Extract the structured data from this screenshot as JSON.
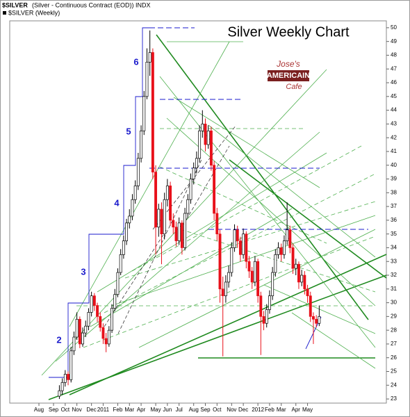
{
  "header": {
    "symbol": "$SILVER",
    "description": "(Silver - Continuous Contract (EOD)) INDX",
    "legend": "$SILVER (Weekly)"
  },
  "logo": {
    "line1": "Jose's",
    "line2": "AMERICAIN",
    "line3": "Cafe"
  },
  "chart_data": {
    "type": "candlestick",
    "title": "Silver Weekly Chart",
    "wave_labels": [
      "2",
      "3",
      "4",
      "5",
      "6"
    ],
    "up_color": "#ffffff",
    "down_color": "#e8101a",
    "xlim": [
      -4,
      125
    ],
    "xticks": [
      {
        "value": 6,
        "label": "Aug"
      },
      {
        "value": 11,
        "label": "Sep"
      },
      {
        "value": 15,
        "label": "Oct"
      },
      {
        "value": 19,
        "label": "Nov"
      },
      {
        "value": 24,
        "label": "Dec"
      },
      {
        "value": 28,
        "label": "2011"
      },
      {
        "value": 33,
        "label": "Feb"
      },
      {
        "value": 37,
        "label": "Mar"
      },
      {
        "value": 41,
        "label": "Apr"
      },
      {
        "value": 46,
        "label": "May"
      },
      {
        "value": 50,
        "label": "Jun"
      },
      {
        "value": 54,
        "label": "Jul"
      },
      {
        "value": 59,
        "label": "Aug"
      },
      {
        "value": 63,
        "label": "Sep"
      },
      {
        "value": 67,
        "label": "Oct"
      },
      {
        "value": 72,
        "label": "Nov"
      },
      {
        "value": 76,
        "label": "Dec"
      },
      {
        "value": 81,
        "label": "2012"
      },
      {
        "value": 85,
        "label": "Feb"
      },
      {
        "value": 89,
        "label": "Mar"
      },
      {
        "value": 94,
        "label": "Apr"
      },
      {
        "value": 98,
        "label": "May"
      }
    ],
    "ylim": [
      22.7,
      50.5
    ],
    "yticks": [
      23,
      24,
      25,
      26,
      27,
      28,
      29,
      30,
      31,
      32,
      33,
      34,
      35,
      36,
      37,
      38,
      39,
      40,
      41,
      42,
      43,
      44,
      45,
      46,
      47,
      48,
      49,
      50
    ],
    "x": [
      13,
      14,
      15,
      16,
      17,
      18,
      19,
      20,
      21,
      22,
      23,
      24,
      25,
      26,
      27,
      28,
      29,
      30,
      31,
      32,
      33,
      34,
      35,
      36,
      37,
      38,
      39,
      40,
      41,
      42,
      43,
      44,
      45,
      46,
      47,
      48,
      49,
      50,
      51,
      52,
      53,
      54,
      55,
      56,
      57,
      58,
      59,
      60,
      61,
      62,
      63,
      64,
      65,
      66,
      67,
      68,
      69,
      70,
      71,
      72,
      73,
      74,
      75,
      76,
      77,
      78,
      79,
      80,
      81,
      82,
      83,
      84,
      85,
      86,
      87,
      88,
      89,
      90,
      91,
      92,
      93,
      94,
      95,
      96,
      97,
      98,
      99,
      100,
      101,
      102
    ],
    "open": [
      23.2,
      23.6,
      24.2,
      24.8,
      24.4,
      26.5,
      27.5,
      28.8,
      27.0,
      27.8,
      28.3,
      29.3,
      30.5,
      29.8,
      29.0,
      28.2,
      27.4,
      27.0,
      28.0,
      29.6,
      30.6,
      32.2,
      33.5,
      34.5,
      35.8,
      36.3,
      37.5,
      38.5,
      40.5,
      42.5,
      45.0,
      47.5,
      48.2,
      39.5,
      35.5,
      36.8,
      35.0,
      37.5,
      38.5,
      36.0,
      35.5,
      34.5,
      35.8,
      34.0,
      36.5,
      37.5,
      39.0,
      39.8,
      40.5,
      42.5,
      43.0,
      41.5,
      42.5,
      40.0,
      36.5,
      35.0,
      31.0,
      30.5,
      31.5,
      32.2,
      34.0,
      35.3,
      34.5,
      33.5,
      35.0,
      33.0,
      32.3,
      31.5,
      33.0,
      30.5,
      29.0,
      28.5,
      29.5,
      30.5,
      32.2,
      33.5,
      34.0,
      33.5,
      34.5,
      35.3,
      34.0,
      32.5,
      32.8,
      31.5,
      32.0,
      31.0,
      30.5,
      29.0,
      28.8,
      28.5
    ],
    "high": [
      24.0,
      24.5,
      25.1,
      25.0,
      26.8,
      27.9,
      29.3,
      29.0,
      28.2,
      28.7,
      29.6,
      30.8,
      30.7,
      30.0,
      29.3,
      28.5,
      27.8,
      28.3,
      29.9,
      31.0,
      32.5,
      33.9,
      34.9,
      36.1,
      36.8,
      37.9,
      38.9,
      40.9,
      42.9,
      45.4,
      48.5,
      49.8,
      48.5,
      40.0,
      37.2,
      37.3,
      38.0,
      39.0,
      38.8,
      36.5,
      35.9,
      36.2,
      36.0,
      36.9,
      37.9,
      39.4,
      40.2,
      41.0,
      42.9,
      44.0,
      43.4,
      42.9,
      42.8,
      40.3,
      36.9,
      35.3,
      31.9,
      32.0,
      32.7,
      34.4,
      35.7,
      35.6,
      34.8,
      35.4,
      35.2,
      33.4,
      32.6,
      33.4,
      33.2,
      30.8,
      29.4,
      29.9,
      30.9,
      32.6,
      33.9,
      34.4,
      34.3,
      34.9,
      37.3,
      35.6,
      34.3,
      33.2,
      33.0,
      32.4,
      32.3,
      31.3,
      30.8,
      29.3,
      29.1,
      29.8
    ],
    "low": [
      23.0,
      23.3,
      23.9,
      24.0,
      24.2,
      26.2,
      27.3,
      26.7,
      26.8,
      27.5,
      28.0,
      29.0,
      29.4,
      28.6,
      27.9,
      27.0,
      26.4,
      26.8,
      27.8,
      29.4,
      30.4,
      32.0,
      33.2,
      34.2,
      35.4,
      36.0,
      37.2,
      38.2,
      40.2,
      42.2,
      44.8,
      46.5,
      39.0,
      33.5,
      34.8,
      32.8,
      34.6,
      37.0,
      35.6,
      35.0,
      34.1,
      34.2,
      33.5,
      33.8,
      36.2,
      37.2,
      38.6,
      39.4,
      40.2,
      42.0,
      41.0,
      41.2,
      39.6,
      36.0,
      34.5,
      30.0,
      26.1,
      30.0,
      31.1,
      31.9,
      33.7,
      34.0,
      33.0,
      33.2,
      32.5,
      31.8,
      31.0,
      31.2,
      30.0,
      26.2,
      28.0,
      28.2,
      29.2,
      30.2,
      31.9,
      33.2,
      33.0,
      33.2,
      34.2,
      33.6,
      32.1,
      32.0,
      31.0,
      31.2,
      30.6,
      30.0,
      28.6,
      27.0,
      28.2,
      28.3
    ],
    "close": [
      23.6,
      24.2,
      24.8,
      24.4,
      26.5,
      27.5,
      28.8,
      27.0,
      27.8,
      28.3,
      29.3,
      30.5,
      29.8,
      29.0,
      28.2,
      27.4,
      27.0,
      28.0,
      29.6,
      30.6,
      32.2,
      33.5,
      34.5,
      35.8,
      36.3,
      37.5,
      38.5,
      40.5,
      42.5,
      45.0,
      47.5,
      48.2,
      39.5,
      35.5,
      36.8,
      35.0,
      37.5,
      38.5,
      36.0,
      35.5,
      34.5,
      35.8,
      34.0,
      36.5,
      37.5,
      39.0,
      39.8,
      40.5,
      42.5,
      43.0,
      41.5,
      42.5,
      40.0,
      36.5,
      35.0,
      31.0,
      30.5,
      31.5,
      32.2,
      34.0,
      35.3,
      34.5,
      33.5,
      35.0,
      33.0,
      32.3,
      31.5,
      33.0,
      30.5,
      29.0,
      28.5,
      29.5,
      30.5,
      32.2,
      33.5,
      34.0,
      33.5,
      34.5,
      35.3,
      34.0,
      32.5,
      32.8,
      31.5,
      32.0,
      31.0,
      30.5,
      29.0,
      28.8,
      28.5,
      29.0
    ]
  }
}
